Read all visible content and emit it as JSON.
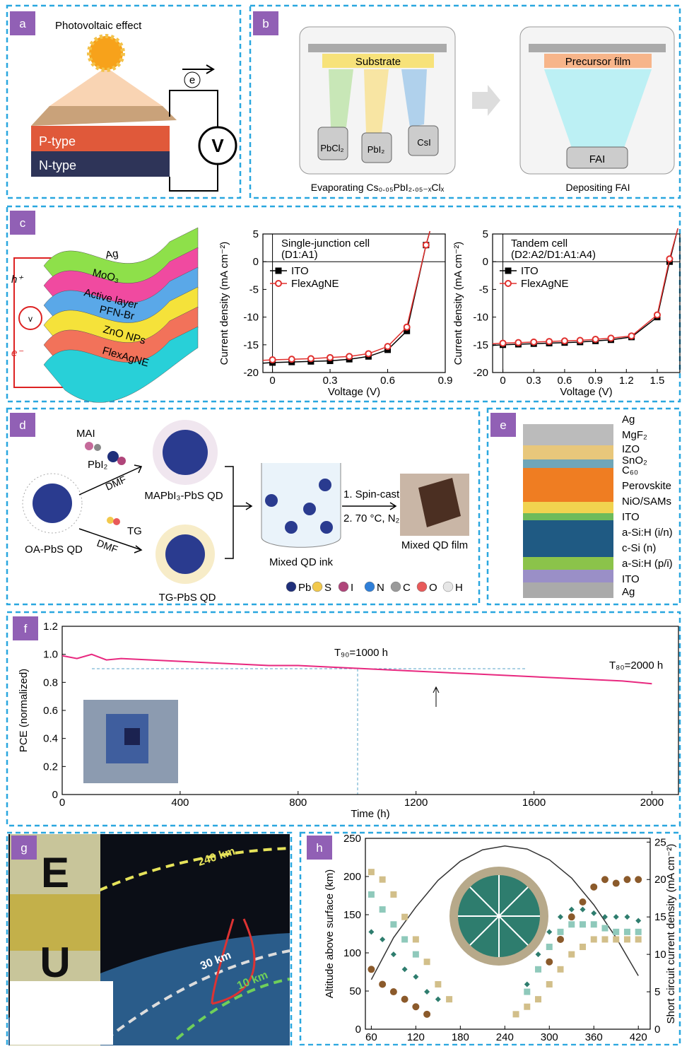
{
  "panels": {
    "a": {
      "label": "a",
      "title": "Photovoltaic effect",
      "electron": "e",
      "p_type": "P-type",
      "n_type": "N-type",
      "meter": "V"
    },
    "b": {
      "label": "b",
      "substrate": "Substrate",
      "source1": "PbCl₂",
      "source2": "PbI₂",
      "source3": "CsI",
      "caption1": "Evaporating Cs₀.₀₅PbI₂.₀₅₋ₓClₓ",
      "precursor": "Precursor film",
      "source4": "FAI",
      "caption2": "Depositing FAI"
    },
    "c": {
      "label": "c",
      "layers": [
        "Ag",
        "MoO₃",
        "Active layer",
        "PFN-Br",
        "ZnO NPs",
        "FlexAgNE"
      ],
      "hole": "h⁺",
      "electron": "e⁻",
      "meter": "v"
    },
    "d": {
      "label": "d",
      "mai": "MAI",
      "pbi2": "PbI₂",
      "dmf1": "DMF",
      "product1": "MAPbI₃-PbS QD",
      "start": "OA-PbS QD",
      "tg": "TG",
      "dmf2": "DMF",
      "product2": "TG-PbS QD",
      "ink": "Mixed QD ink",
      "step1": "1. Spin-cast",
      "step2": "2. 70 °C, N₂",
      "film": "Mixed QD film",
      "elements": [
        {
          "name": "Pb",
          "color": "#1f2f7a"
        },
        {
          "name": "S",
          "color": "#f2c94c"
        },
        {
          "name": "I",
          "color": "#b0457a"
        },
        {
          "name": "N",
          "color": "#2f7fd8"
        },
        {
          "name": "C",
          "color": "#9a9a9a"
        },
        {
          "name": "O",
          "color": "#e85a5a"
        },
        {
          "name": "H",
          "color": "#e6e6e6"
        }
      ]
    },
    "e": {
      "label": "e",
      "layers": [
        "Ag",
        "MgF₂",
        "IZO",
        "SnO₂",
        "C₆₀",
        "Perovskite",
        "NiO/SAMs",
        "ITO",
        "a-Si:H (i/n)",
        "c-Si (n)",
        "a-Si:H (p/i)",
        "ITO",
        "Ag"
      ]
    },
    "f": {
      "label": "f"
    },
    "g": {
      "label": "g",
      "letter1": "E",
      "letter2": "U",
      "alt1": "240 km",
      "alt2": "30 km",
      "alt3": "10 km"
    },
    "h": {
      "label": "h"
    }
  },
  "chart_data": [
    {
      "type": "line",
      "title": "Single-junction cell",
      "subtitle": "(D1:A1)",
      "xlabel": "Voltage (V)",
      "ylabel": "Current density (mA cm⁻²)",
      "x": [
        -0.05,
        0,
        0.1,
        0.2,
        0.3,
        0.4,
        0.5,
        0.6,
        0.7,
        0.8,
        0.82
      ],
      "series": [
        {
          "name": "ITO",
          "color": "#000000",
          "marker": "square",
          "values": [
            -18.3,
            -18.2,
            -18.1,
            -18.0,
            -17.9,
            -17.6,
            -17.1,
            -15.9,
            -12.5,
            3,
            5.5
          ]
        },
        {
          "name": "FlexAgNE",
          "color": "#e0302e",
          "marker": "circle",
          "values": [
            -17.8,
            -17.7,
            -17.6,
            -17.5,
            -17.3,
            -17.1,
            -16.6,
            -15.3,
            -11.8,
            3,
            5.5
          ]
        }
      ],
      "xlim": [
        -0.05,
        0.9
      ],
      "ylim": [
        -20,
        5
      ],
      "xticks": [
        0,
        0.3,
        0.6,
        0.9
      ],
      "yticks": [
        -20,
        -15,
        -10,
        -5,
        0,
        5
      ],
      "zero_lines": true,
      "legend": "upper left"
    },
    {
      "type": "line",
      "title": "Tandem cell",
      "subtitle": "(D2:A2/D1:A1:A4)",
      "xlabel": "Voltage (V)",
      "ylabel": "Current density (mA cm⁻²)",
      "x": [
        -0.1,
        0,
        0.15,
        0.3,
        0.45,
        0.6,
        0.75,
        0.9,
        1.05,
        1.25,
        1.5,
        1.62,
        1.7
      ],
      "series": [
        {
          "name": "ITO",
          "color": "#000000",
          "marker": "square",
          "values": [
            -15.1,
            -15.0,
            -14.9,
            -14.8,
            -14.7,
            -14.6,
            -14.5,
            -14.3,
            -14.1,
            -13.6,
            -10,
            0,
            6
          ]
        },
        {
          "name": "FlexAgNE",
          "color": "#e0302e",
          "marker": "circle",
          "values": [
            -14.8,
            -14.7,
            -14.6,
            -14.5,
            -14.4,
            -14.3,
            -14.2,
            -14.0,
            -13.8,
            -13.4,
            -9.6,
            0.5,
            6
          ]
        }
      ],
      "xlim": [
        -0.1,
        1.72
      ],
      "ylim": [
        -20,
        5
      ],
      "xticks": [
        0,
        0.3,
        0.6,
        0.9,
        1.2,
        1.5
      ],
      "yticks": [
        -20,
        -15,
        -10,
        -5,
        0,
        5
      ],
      "zero_lines": true,
      "legend": "upper left"
    },
    {
      "type": "line",
      "xlabel": "Time (h)",
      "ylabel": "PCE (normalized)",
      "annotations": [
        "T₉₀=1000 h",
        "T₈₀=2000 h"
      ],
      "x": [
        0,
        50,
        100,
        150,
        200,
        300,
        400,
        500,
        600,
        700,
        800,
        900,
        1000,
        1100,
        1200,
        1300,
        1400,
        1500,
        1600,
        1700,
        1800,
        1900,
        2000
      ],
      "series": [
        {
          "color": "#e8287f",
          "values": [
            0.99,
            0.97,
            1.0,
            0.96,
            0.97,
            0.96,
            0.95,
            0.94,
            0.93,
            0.92,
            0.92,
            0.91,
            0.9,
            0.89,
            0.88,
            0.87,
            0.86,
            0.85,
            0.84,
            0.83,
            0.82,
            0.81,
            0.79
          ]
        }
      ],
      "xlim": [
        0,
        2090
      ],
      "ylim": [
        0,
        1.2
      ],
      "xticks": [
        0,
        400,
        800,
        1200,
        1600,
        2000
      ],
      "yticks": [
        0,
        0.2,
        0.4,
        0.6,
        0.8,
        {
          "value": 1,
          "label": "1.0"
        },
        {
          "value": 1.2,
          "label": "1.2"
        }
      ]
    },
    {
      "type": "scatter",
      "ylabel": "Altitude above surface (km)",
      "y2label": "Short circuit current density (mA cm⁻²)",
      "series": [
        {
          "color": "#333333",
          "marker": "line",
          "x": [
            60,
            90,
            120,
            150,
            180,
            210,
            240,
            270,
            300,
            330,
            360,
            390,
            420
          ],
          "values": [
            65,
            120,
            160,
            195,
            220,
            235,
            240,
            236,
            222,
            198,
            163,
            120,
            70
          ]
        },
        {
          "color": "#8b5a2b",
          "marker": "circle",
          "axis": "y2",
          "x": [
            60,
            75,
            90,
            105,
            120,
            135,
            300,
            315,
            330,
            345,
            360,
            375,
            390,
            405,
            420
          ],
          "values": [
            8,
            6,
            5,
            4,
            3,
            2,
            9,
            12,
            15,
            17,
            19,
            20,
            19.5,
            20,
            20
          ]
        },
        {
          "color": "#2e7d6e",
          "marker": "diamond",
          "axis": "y2",
          "x": [
            60,
            75,
            90,
            105,
            120,
            135,
            150,
            270,
            285,
            300,
            315,
            330,
            345,
            360,
            375,
            390,
            405,
            420
          ],
          "values": [
            13,
            12,
            10,
            8,
            7,
            5,
            4,
            6,
            10,
            13,
            15,
            16,
            16,
            15.5,
            15,
            15,
            15,
            14.5
          ]
        },
        {
          "color": "#d2bf8a",
          "marker": "square",
          "axis": "y2",
          "x": [
            60,
            75,
            90,
            105,
            120,
            135,
            150,
            165,
            255,
            270,
            285,
            300,
            315,
            330,
            345,
            360,
            375,
            390,
            405,
            420
          ],
          "values": [
            21,
            20,
            18,
            15,
            12,
            9,
            6,
            4,
            2,
            3,
            4,
            6,
            8,
            10,
            11,
            12,
            12,
            12,
            12,
            12
          ]
        },
        {
          "color": "#8fc9bb",
          "marker": "square",
          "axis": "y2",
          "x": [
            60,
            75,
            90,
            105,
            120,
            270,
            285,
            300,
            315,
            330,
            345,
            360,
            375,
            390,
            405,
            420
          ],
          "values": [
            18,
            16,
            14,
            12,
            10,
            5,
            8,
            11,
            13,
            14,
            14,
            14,
            13.5,
            13,
            13,
            13
          ]
        }
      ],
      "xlim": [
        52,
        436
      ],
      "ylim": [
        0,
        250
      ],
      "y2lim": [
        0,
        25.5
      ],
      "xticks": [
        60,
        120,
        180,
        240,
        300,
        360,
        420
      ],
      "yticks": [
        0,
        50,
        100,
        150,
        200,
        250
      ],
      "y2ticks": [
        0,
        5,
        10,
        15,
        20,
        25
      ]
    }
  ]
}
